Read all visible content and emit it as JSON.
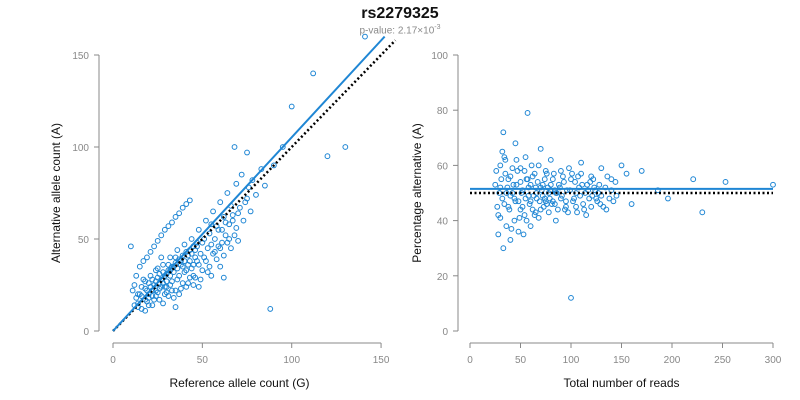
{
  "title": "rs2279325",
  "subtitle": {
    "prefix": "p-value: 2.17×10",
    "exponent": "-3"
  },
  "colors": {
    "points": "#1f86d4",
    "fit": "#1f86d4",
    "reference": "#000000",
    "axis": "#888888"
  },
  "chart_data": [
    {
      "type": "scatter",
      "xlabel": "Reference allele count (G)",
      "ylabel": "Alternative allele count (A)",
      "xlim": [
        0,
        155
      ],
      "ylim": [
        0,
        150
      ],
      "xticks": [
        0,
        50,
        100,
        150
      ],
      "yticks": [
        0,
        50,
        100,
        150
      ],
      "grid": false,
      "fit_line": {
        "from": [
          0,
          0
        ],
        "to": [
          152,
          160
        ]
      },
      "reference_line": {
        "from": [
          0,
          0
        ],
        "to": [
          158,
          158
        ]
      },
      "points": [
        [
          141,
          160
        ],
        [
          112,
          140
        ],
        [
          100,
          122
        ],
        [
          130,
          100
        ],
        [
          88,
          12
        ],
        [
          120,
          95
        ],
        [
          75,
          97
        ],
        [
          68,
          100
        ],
        [
          11,
          22
        ],
        [
          12,
          25
        ],
        [
          13,
          18
        ],
        [
          14,
          15
        ],
        [
          15,
          20
        ],
        [
          16,
          12
        ],
        [
          17,
          28
        ],
        [
          18,
          17
        ],
        [
          19,
          22
        ],
        [
          20,
          14
        ],
        [
          21,
          30
        ],
        [
          22,
          19
        ],
        [
          23,
          25
        ],
        [
          24,
          33
        ],
        [
          25,
          21
        ],
        [
          26,
          17
        ],
        [
          27,
          28
        ],
        [
          28,
          36
        ],
        [
          29,
          24
        ],
        [
          30,
          31
        ],
        [
          31,
          19
        ],
        [
          32,
          40
        ],
        [
          33,
          27
        ],
        [
          34,
          35
        ],
        [
          35,
          22
        ],
        [
          36,
          44
        ],
        [
          37,
          30
        ],
        [
          38,
          38
        ],
        [
          39,
          26
        ],
        [
          40,
          47
        ],
        [
          41,
          33
        ],
        [
          42,
          41
        ],
        [
          43,
          29
        ],
        [
          44,
          50
        ],
        [
          45,
          36
        ],
        [
          46,
          44
        ],
        [
          47,
          38
        ],
        [
          48,
          55
        ],
        [
          49,
          42
        ],
        [
          50,
          48
        ],
        [
          51,
          40
        ],
        [
          52,
          60
        ],
        [
          53,
          45
        ],
        [
          54,
          53
        ],
        [
          55,
          47
        ],
        [
          56,
          65
        ],
        [
          57,
          50
        ],
        [
          58,
          57
        ],
        [
          59,
          46
        ],
        [
          60,
          70
        ],
        [
          61,
          55
        ],
        [
          62,
          62
        ],
        [
          63,
          52
        ],
        [
          64,
          75
        ],
        [
          65,
          58
        ],
        [
          66,
          68
        ],
        [
          67,
          60
        ],
        [
          69,
          80
        ],
        [
          70,
          64
        ],
        [
          72,
          85
        ],
        [
          74,
          70
        ],
        [
          76,
          78
        ],
        [
          78,
          82
        ],
        [
          80,
          74
        ],
        [
          83,
          88
        ],
        [
          85,
          79
        ],
        [
          90,
          90
        ],
        [
          95,
          100
        ],
        [
          12,
          14
        ],
        [
          14,
          20
        ],
        [
          16,
          24
        ],
        [
          18,
          11
        ],
        [
          20,
          26
        ],
        [
          22,
          14
        ],
        [
          24,
          19
        ],
        [
          26,
          23
        ],
        [
          28,
          15
        ],
        [
          30,
          21
        ],
        [
          32,
          25
        ],
        [
          34,
          18
        ],
        [
          36,
          28
        ],
        [
          38,
          23
        ],
        [
          40,
          32
        ],
        [
          42,
          26
        ],
        [
          44,
          34
        ],
        [
          46,
          29
        ],
        [
          48,
          36
        ],
        [
          50,
          33
        ],
        [
          52,
          38
        ],
        [
          54,
          35
        ],
        [
          56,
          42
        ],
        [
          58,
          39
        ],
        [
          60,
          45
        ],
        [
          62,
          41
        ],
        [
          64,
          48
        ],
        [
          66,
          45
        ],
        [
          68,
          52
        ],
        [
          70,
          49
        ],
        [
          13,
          30
        ],
        [
          15,
          35
        ],
        [
          17,
          38
        ],
        [
          19,
          40
        ],
        [
          21,
          43
        ],
        [
          23,
          46
        ],
        [
          25,
          49
        ],
        [
          27,
          52
        ],
        [
          29,
          55
        ],
        [
          31,
          57
        ],
        [
          33,
          59
        ],
        [
          35,
          62
        ],
        [
          37,
          64
        ],
        [
          39,
          67
        ],
        [
          41,
          69
        ],
        [
          43,
          71
        ],
        [
          10,
          46
        ],
        [
          35,
          13
        ],
        [
          45,
          25
        ],
        [
          55,
          30
        ],
        [
          25,
          34
        ],
        [
          27,
          40
        ],
        [
          29,
          20
        ],
        [
          31,
          36
        ],
        [
          33,
          22
        ],
        [
          35,
          40
        ],
        [
          37,
          20
        ],
        [
          39,
          35
        ],
        [
          41,
          24
        ],
        [
          43,
          38
        ],
        [
          45,
          30
        ],
        [
          47,
          46
        ],
        [
          49,
          28
        ],
        [
          51,
          50
        ],
        [
          53,
          32
        ],
        [
          55,
          58
        ],
        [
          57,
          43
        ],
        [
          59,
          55
        ],
        [
          61,
          48
        ],
        [
          63,
          59
        ],
        [
          65,
          50
        ],
        [
          67,
          63
        ],
        [
          69,
          56
        ],
        [
          71,
          67
        ],
        [
          73,
          60
        ],
        [
          75,
          72
        ],
        [
          77,
          65
        ],
        [
          60,
          35
        ],
        [
          62,
          29
        ],
        [
          48,
          24
        ],
        [
          18,
          23
        ],
        [
          19,
          16
        ],
        [
          20,
          20
        ],
        [
          21,
          24
        ],
        [
          22,
          22
        ],
        [
          23,
          17
        ],
        [
          24,
          27
        ],
        [
          25,
          29
        ],
        [
          26,
          31
        ],
        [
          27,
          24
        ],
        [
          28,
          26
        ],
        [
          29,
          30
        ],
        [
          30,
          27
        ],
        [
          31,
          33
        ],
        [
          32,
          30
        ],
        [
          33,
          35
        ],
        [
          34,
          32
        ],
        [
          35,
          37
        ],
        [
          36,
          34
        ],
        [
          37,
          39
        ],
        [
          38,
          36
        ],
        [
          39,
          41
        ],
        [
          40,
          38
        ],
        [
          41,
          43
        ],
        [
          42,
          36
        ],
        [
          43,
          44
        ],
        [
          44,
          42
        ],
        [
          45,
          46
        ],
        [
          46,
          40
        ],
        [
          47,
          48
        ],
        [
          14,
          13
        ],
        [
          16,
          19
        ],
        [
          18,
          27
        ],
        [
          20,
          18
        ],
        [
          22,
          28
        ],
        [
          24,
          22
        ],
        [
          26,
          26
        ],
        [
          28,
          32
        ],
        [
          30,
          24
        ],
        [
          32,
          33
        ]
      ]
    },
    {
      "type": "scatter",
      "xlabel": "Total number of reads",
      "ylabel": "Percentage alternative (A)",
      "xlim": [
        0,
        300
      ],
      "ylim": [
        0,
        100
      ],
      "xticks": [
        0,
        50,
        100,
        150,
        200,
        250,
        300
      ],
      "yticks": [
        0,
        20,
        40,
        60,
        80,
        100
      ],
      "grid": false,
      "fit_line": {
        "from": [
          0,
          51.5
        ],
        "to": [
          300,
          51.5
        ]
      },
      "reference_line": {
        "from": [
          0,
          50
        ],
        "to": [
          300,
          50
        ]
      },
      "points": [
        [
          57,
          79
        ],
        [
          33,
          72
        ],
        [
          100,
          12
        ],
        [
          300,
          53
        ],
        [
          253,
          54
        ],
        [
          230,
          43
        ],
        [
          221,
          55
        ],
        [
          196,
          48
        ],
        [
          186,
          51
        ],
        [
          170,
          58
        ],
        [
          160,
          46
        ],
        [
          155,
          57
        ],
        [
          150,
          60
        ],
        [
          145,
          49
        ],
        [
          140,
          55
        ],
        [
          135,
          44
        ],
        [
          130,
          59
        ],
        [
          125,
          48
        ],
        [
          120,
          56
        ],
        [
          115,
          42
        ],
        [
          110,
          61
        ],
        [
          105,
          50
        ],
        [
          100,
          55
        ],
        [
          95,
          45
        ],
        [
          90,
          58
        ],
        [
          85,
          40
        ],
        [
          80,
          62
        ],
        [
          75,
          47
        ],
        [
          70,
          66
        ],
        [
          65,
          52
        ],
        [
          60,
          38
        ],
        [
          55,
          63
        ],
        [
          50,
          44
        ],
        [
          45,
          68
        ],
        [
          40,
          49
        ],
        [
          35,
          57
        ],
        [
          30,
          41
        ],
        [
          25,
          53
        ],
        [
          28,
          35
        ],
        [
          30,
          60
        ],
        [
          32,
          65
        ],
        [
          34,
          46
        ],
        [
          36,
          38
        ],
        [
          38,
          55
        ],
        [
          40,
          33
        ],
        [
          42,
          59
        ],
        [
          44,
          48
        ],
        [
          46,
          62
        ],
        [
          48,
          36
        ],
        [
          50,
          54
        ],
        [
          52,
          45
        ],
        [
          54,
          58
        ],
        [
          56,
          40
        ],
        [
          58,
          52
        ],
        [
          60,
          47
        ],
        [
          62,
          56
        ],
        [
          64,
          42
        ],
        [
          66,
          50
        ],
        [
          68,
          60
        ],
        [
          70,
          44
        ],
        [
          72,
          53
        ],
        [
          74,
          48
        ],
        [
          76,
          57
        ],
        [
          78,
          43
        ],
        [
          80,
          51
        ],
        [
          82,
          55
        ],
        [
          84,
          46
        ],
        [
          86,
          50
        ],
        [
          88,
          53
        ],
        [
          90,
          48
        ],
        [
          92,
          56
        ],
        [
          94,
          44
        ],
        [
          96,
          51
        ],
        [
          98,
          59
        ],
        [
          102,
          47
        ],
        [
          104,
          54
        ],
        [
          106,
          43
        ],
        [
          108,
          52
        ],
        [
          110,
          57
        ],
        [
          112,
          46
        ],
        [
          114,
          50
        ],
        [
          116,
          53
        ],
        [
          118,
          48
        ],
        [
          120,
          45
        ],
        [
          122,
          55
        ],
        [
          124,
          51
        ],
        [
          126,
          47
        ],
        [
          128,
          53
        ],
        [
          130,
          49
        ],
        [
          132,
          45
        ],
        [
          134,
          52
        ],
        [
          136,
          56
        ],
        [
          138,
          48
        ],
        [
          140,
          51
        ],
        [
          142,
          47
        ],
        [
          144,
          54
        ],
        [
          27,
          45
        ],
        [
          29,
          50
        ],
        [
          31,
          55
        ],
        [
          33,
          30
        ],
        [
          35,
          62
        ],
        [
          37,
          52
        ],
        [
          39,
          44
        ],
        [
          41,
          37
        ],
        [
          43,
          53
        ],
        [
          45,
          47
        ],
        [
          47,
          58
        ],
        [
          49,
          41
        ],
        [
          51,
          50
        ],
        [
          53,
          35
        ],
        [
          55,
          48
        ],
        [
          57,
          55
        ],
        [
          59,
          46
        ],
        [
          61,
          60
        ],
        [
          63,
          49
        ],
        [
          65,
          43
        ],
        [
          67,
          54
        ],
        [
          69,
          47
        ],
        [
          71,
          51
        ],
        [
          73,
          45
        ],
        [
          75,
          58
        ],
        [
          77,
          52
        ],
        [
          79,
          48
        ],
        [
          81,
          46
        ],
        [
          83,
          57
        ],
        [
          85,
          50
        ],
        [
          87,
          44
        ],
        [
          89,
          52
        ],
        [
          91,
          49
        ],
        [
          93,
          54
        ],
        [
          95,
          47
        ],
        [
          97,
          43
        ],
        [
          99,
          51
        ],
        [
          101,
          57
        ],
        [
          103,
          48
        ],
        [
          105,
          45
        ],
        [
          26,
          58
        ],
        [
          28,
          42
        ],
        [
          30,
          52
        ],
        [
          32,
          48
        ],
        [
          34,
          63
        ],
        [
          36,
          50
        ],
        [
          38,
          45
        ],
        [
          40,
          56
        ],
        [
          42,
          50
        ],
        [
          44,
          40
        ],
        [
          46,
          53
        ],
        [
          48,
          47
        ],
        [
          50,
          59
        ],
        [
          52,
          51
        ],
        [
          54,
          42
        ],
        [
          56,
          55
        ],
        [
          58,
          49
        ],
        [
          60,
          53
        ],
        [
          62,
          44
        ],
        [
          64,
          57
        ],
        [
          66,
          48
        ],
        [
          68,
          41
        ],
        [
          70,
          52
        ],
        [
          72,
          49
        ],
        [
          74,
          55
        ],
        [
          76,
          46
        ],
        [
          78,
          50
        ],
        [
          80,
          53
        ],
        [
          82,
          47
        ],
        [
          84,
          51
        ],
        [
          107,
          56
        ],
        [
          109,
          49
        ],
        [
          111,
          53
        ],
        [
          113,
          44
        ],
        [
          117,
          51
        ],
        [
          119,
          54
        ],
        [
          121,
          49
        ],
        [
          123,
          52
        ],
        [
          127,
          50
        ],
        [
          129,
          46
        ]
      ]
    }
  ]
}
